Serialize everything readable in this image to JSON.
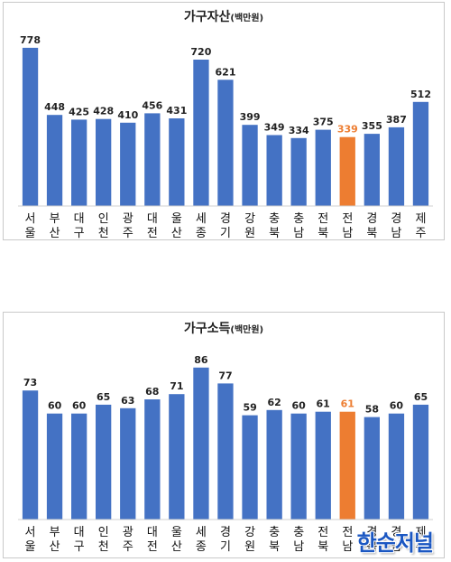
{
  "colors": {
    "bar": "#4472C4",
    "highlight": "#ED7D31",
    "highlight_text": "#ED7D31"
  },
  "watermark": "한순저널",
  "chart_data": [
    {
      "type": "bar",
      "title": "가구자산",
      "unit": "(백만원)",
      "categories": [
        "서울",
        "부산",
        "대구",
        "인천",
        "광주",
        "대전",
        "울산",
        "세종",
        "경기",
        "강원",
        "충북",
        "충남",
        "전북",
        "전남",
        "경북",
        "경남",
        "제주"
      ],
      "values": [
        778,
        448,
        425,
        428,
        410,
        456,
        431,
        720,
        621,
        399,
        349,
        334,
        375,
        339,
        355,
        387,
        512
      ],
      "highlight_index": 13,
      "xlabel": "",
      "ylabel": "",
      "ylim": [
        0,
        800
      ],
      "grid": false
    },
    {
      "type": "bar",
      "title": "가구소득",
      "unit": "(백만원)",
      "categories": [
        "서울",
        "부산",
        "대구",
        "인천",
        "광주",
        "대전",
        "울산",
        "세종",
        "경기",
        "강원",
        "충북",
        "충남",
        "전북",
        "전남",
        "경북",
        "경남",
        "제주"
      ],
      "values": [
        73,
        60,
        60,
        65,
        63,
        68,
        71,
        86,
        77,
        59,
        62,
        60,
        61,
        61,
        58,
        60,
        65
      ],
      "highlight_index": 13,
      "xlabel": "",
      "ylabel": "",
      "ylim": [
        0,
        90
      ],
      "grid": false
    }
  ]
}
